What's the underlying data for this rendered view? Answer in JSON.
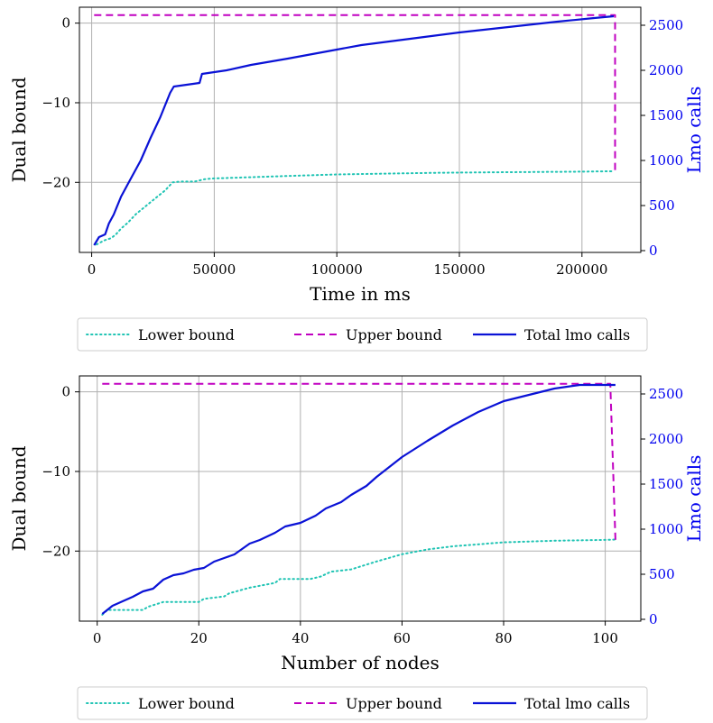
{
  "colors": {
    "lower": "#20c4b4",
    "upper": "#c000c0",
    "lmo": "#0a12d6",
    "right_axis": "#0000ee",
    "grid": "#b0b0b0"
  },
  "chart_data": [
    {
      "type": "line",
      "xlabel": "Time in ms",
      "ylabel": "Dual bound",
      "y2label": "Lmo calls",
      "xlim": [
        -5000,
        224000
      ],
      "ylim": [
        -28.8,
        2.0
      ],
      "y2lim": [
        -20,
        2700
      ],
      "xticks": [
        0,
        50000,
        100000,
        150000,
        200000
      ],
      "xtick_labels": [
        "0",
        "50000",
        "100000",
        "150000",
        "200000"
      ],
      "yticks": [
        0,
        -10,
        -20
      ],
      "ytick_labels": [
        "0",
        "−10",
        "−20"
      ],
      "y2ticks": [
        0,
        500,
        1000,
        1500,
        2000,
        2500
      ],
      "y2tick_labels": [
        "0",
        "500",
        "1000",
        "1500",
        "2000",
        "2500"
      ],
      "grid": true,
      "series": [
        {
          "name": "Lower bound",
          "style": "dotted",
          "color_key": "lower",
          "axis": "left",
          "x": [
            2000,
            5000,
            8000,
            10000,
            12000,
            15000,
            18000,
            22000,
            26000,
            30000,
            33000,
            36000,
            42000,
            46000,
            50000,
            60000,
            80000,
            100000,
            120000,
            140000,
            160000,
            180000,
            200000,
            213000
          ],
          "y": [
            -27.8,
            -27.3,
            -27.0,
            -26.5,
            -25.8,
            -25.0,
            -24.0,
            -23.0,
            -22.0,
            -21.0,
            -20.0,
            -19.9,
            -19.9,
            -19.6,
            -19.5,
            -19.4,
            -19.2,
            -19.0,
            -18.9,
            -18.8,
            -18.75,
            -18.7,
            -18.65,
            -18.6
          ]
        },
        {
          "name": "Upper bound",
          "style": "dashed",
          "color_key": "upper",
          "axis": "left",
          "x": [
            1000,
            213500,
            213500
          ],
          "y": [
            1.0,
            1.0,
            -18.6
          ]
        },
        {
          "name": "Total lmo calls",
          "style": "solid",
          "color_key": "lmo",
          "axis": "right",
          "x": [
            1000,
            3000,
            5500,
            7000,
            9000,
            12000,
            16000,
            20000,
            24000,
            28000,
            32000,
            33500,
            44000,
            45000,
            55000,
            65000,
            80000,
            100000,
            110000,
            130000,
            150000,
            170000,
            190000,
            205000,
            213000
          ],
          "y": [
            60,
            150,
            180,
            300,
            400,
            600,
            800,
            1000,
            1250,
            1480,
            1750,
            1820,
            1860,
            1960,
            2000,
            2060,
            2130,
            2230,
            2280,
            2350,
            2420,
            2480,
            2540,
            2580,
            2600
          ]
        }
      ],
      "legend": [
        "Lower bound",
        "Upper bound",
        "Total lmo calls"
      ],
      "legend_position": "below"
    },
    {
      "type": "line",
      "xlabel": "Number of nodes",
      "ylabel": "Dual bound",
      "y2label": "Lmo calls",
      "xlim": [
        -3.5,
        107
      ],
      "ylim": [
        -28.8,
        2.0
      ],
      "y2lim": [
        -20,
        2700
      ],
      "xticks": [
        0,
        20,
        40,
        60,
        80,
        100
      ],
      "xtick_labels": [
        "0",
        "20",
        "40",
        "60",
        "80",
        "100"
      ],
      "yticks": [
        0,
        -10,
        -20
      ],
      "ytick_labels": [
        "0",
        "−10",
        "−20"
      ],
      "y2ticks": [
        0,
        500,
        1000,
        1500,
        2000,
        2500
      ],
      "y2tick_labels": [
        "0",
        "500",
        "1000",
        "1500",
        "2000",
        "2500"
      ],
      "grid": true,
      "series": [
        {
          "name": "Lower bound",
          "style": "dotted",
          "color_key": "lower",
          "axis": "left",
          "x": [
            1,
            2,
            5,
            9,
            10,
            13,
            15,
            20,
            21,
            25,
            26,
            30,
            35,
            36,
            42,
            44,
            46,
            50,
            55,
            60,
            65,
            70,
            80,
            90,
            100,
            102
          ],
          "y": [
            -28.0,
            -27.4,
            -27.4,
            -27.4,
            -27.0,
            -26.4,
            -26.4,
            -26.4,
            -26.0,
            -25.7,
            -25.3,
            -24.6,
            -24.0,
            -23.5,
            -23.5,
            -23.2,
            -22.6,
            -22.3,
            -21.3,
            -20.4,
            -19.8,
            -19.4,
            -18.9,
            -18.7,
            -18.6,
            -18.55
          ]
        },
        {
          "name": "Upper bound",
          "style": "dashed",
          "color_key": "upper",
          "axis": "left",
          "x": [
            1,
            101,
            102
          ],
          "y": [
            1.0,
            1.0,
            -18.6
          ]
        },
        {
          "name": "Total lmo calls",
          "style": "solid",
          "color_key": "lmo",
          "axis": "right",
          "x": [
            1,
            3,
            5,
            7,
            9,
            11,
            13,
            15,
            17,
            19,
            21,
            23,
            25,
            27,
            30,
            32,
            35,
            37,
            40,
            43,
            45,
            48,
            50,
            53,
            55,
            60,
            65,
            70,
            75,
            80,
            85,
            90,
            95,
            100,
            102
          ],
          "y": [
            60,
            150,
            200,
            250,
            310,
            340,
            440,
            490,
            510,
            550,
            570,
            640,
            680,
            720,
            840,
            880,
            960,
            1030,
            1070,
            1150,
            1230,
            1300,
            1380,
            1480,
            1580,
            1800,
            1980,
            2150,
            2300,
            2420,
            2490,
            2560,
            2600,
            2600,
            2600
          ]
        }
      ],
      "legend": [
        "Lower bound",
        "Upper bound",
        "Total lmo calls"
      ],
      "legend_position": "below"
    }
  ]
}
